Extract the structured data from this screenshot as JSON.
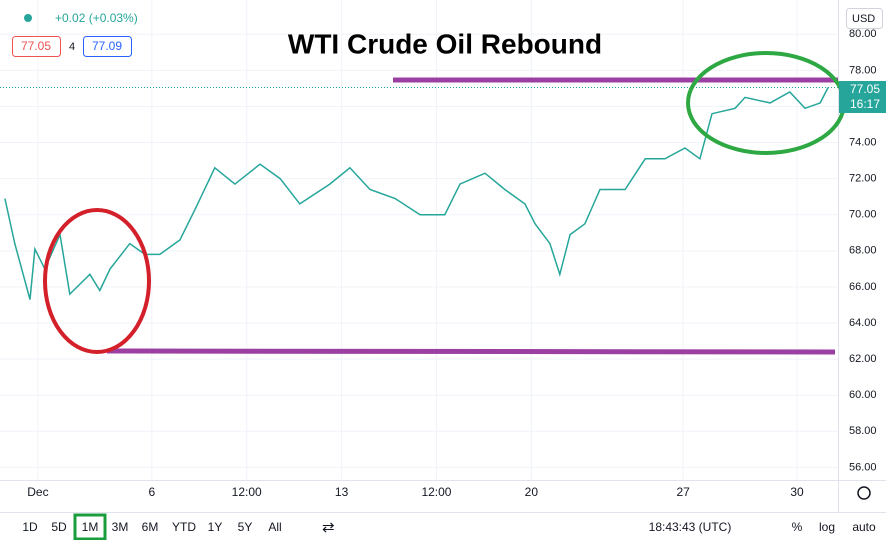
{
  "chart_data": {
    "type": "line",
    "title": "WTI Crude Oil Rebound",
    "x": [
      -0.87,
      -0.61,
      -0.21,
      -0.08,
      0.18,
      0.58,
      0.84,
      1.37,
      1.63,
      1.9,
      2.42,
      2.82,
      3.21,
      3.74,
      4.14,
      4.66,
      5.19,
      5.85,
      6.38,
      6.9,
      7.69,
      8.22,
      8.75,
      9.41,
      10.07,
      10.72,
      11.12,
      11.78,
      12.3,
      12.83,
      13.1,
      13.49,
      13.75,
      14.02,
      14.41,
      14.81,
      15.47,
      16.0,
      16.52,
      17.05,
      17.44,
      17.76,
      18.37,
      18.63,
      19.29,
      19.81,
      20.21,
      20.61,
      20.82
    ],
    "values": [
      70.9,
      68.4,
      65.3,
      68.1,
      67.0,
      68.9,
      65.6,
      66.7,
      65.8,
      67.0,
      68.4,
      67.8,
      67.8,
      68.6,
      70.3,
      72.6,
      71.7,
      72.8,
      72.0,
      70.6,
      71.7,
      72.6,
      71.4,
      70.9,
      70.0,
      70.0,
      71.7,
      72.3,
      71.4,
      70.6,
      69.5,
      68.4,
      66.7,
      68.9,
      69.5,
      71.4,
      71.4,
      73.1,
      73.1,
      73.7,
      73.1,
      75.6,
      75.9,
      76.5,
      76.2,
      76.8,
      75.9,
      76.2,
      77.05
    ],
    "color": "#26a69a",
    "xlim": [
      -1,
      21.08
    ],
    "xticks": [
      {
        "value": 0,
        "label": "Dec"
      },
      {
        "value": 3,
        "label": "6"
      },
      {
        "value": 5.5,
        "label": "12:00"
      },
      {
        "value": 8,
        "label": "13"
      },
      {
        "value": 10.5,
        "label": "12:00"
      },
      {
        "value": 13,
        "label": "20"
      },
      {
        "value": 17,
        "label": "27"
      },
      {
        "value": 20,
        "label": "30"
      }
    ],
    "ylim": [
      55.3,
      81.9
    ],
    "yticks": [
      {
        "value": 56,
        "label": "56.00"
      },
      {
        "value": 58,
        "label": "58.00"
      },
      {
        "value": 60,
        "label": "60.00"
      },
      {
        "value": 62,
        "label": "62.00"
      },
      {
        "value": 64,
        "label": "64.00"
      },
      {
        "value": 66,
        "label": "66.00"
      },
      {
        "value": 68,
        "label": "68.00"
      },
      {
        "value": 70,
        "label": "70.00"
      },
      {
        "value": 72,
        "label": "72.00"
      },
      {
        "value": 74,
        "label": "74.00"
      },
      {
        "value": 76,
        "label": "76.00"
      },
      {
        "value": 78,
        "label": "78.00"
      },
      {
        "value": 80,
        "label": "80.00"
      }
    ],
    "grid": true
  },
  "header": {
    "change": "+0.02 (+0.03%)",
    "bid": "77.05",
    "spread": "4",
    "ask": "77.09",
    "currency": "USD"
  },
  "price_label": {
    "price": "77.05",
    "countdown": "16:17"
  },
  "toolbar": {
    "ranges": [
      "1D",
      "5D",
      "1M",
      "3M",
      "6M",
      "YTD",
      "1Y",
      "5Y",
      "All"
    ],
    "time": "18:43:43 (UTC)",
    "percent": "%",
    "log": "log",
    "auto": "auto"
  }
}
